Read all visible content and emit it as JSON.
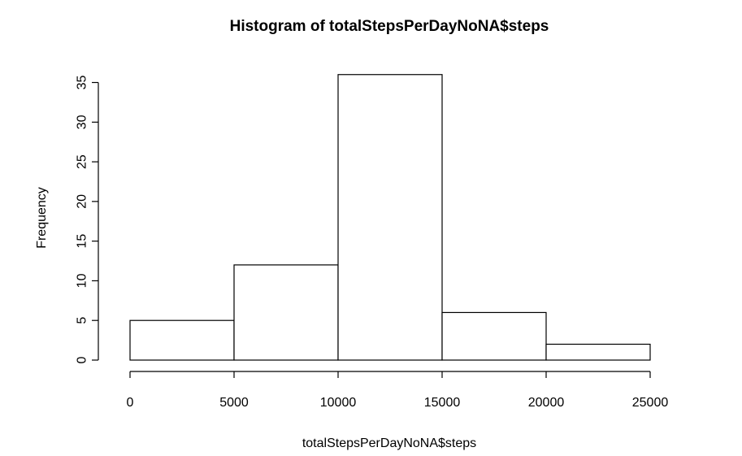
{
  "chart_data": {
    "type": "bar",
    "title": "Histogram of totalStepsPerDayNoNA$steps",
    "xlabel": "totalStepsPerDayNoNA$steps",
    "ylabel": "Frequency",
    "bins": [
      {
        "from": 0,
        "to": 5000,
        "count": 5
      },
      {
        "from": 5000,
        "to": 10000,
        "count": 12
      },
      {
        "from": 10000,
        "to": 15000,
        "count": 36
      },
      {
        "from": 15000,
        "to": 20000,
        "count": 6
      },
      {
        "from": 20000,
        "to": 25000,
        "count": 2
      }
    ],
    "xlim": [
      0,
      25000
    ],
    "ylim": [
      0,
      35
    ],
    "xticks": [
      0,
      5000,
      10000,
      15000,
      20000,
      25000
    ],
    "yticks": [
      0,
      5,
      10,
      15,
      20,
      25,
      30,
      35
    ],
    "grid": false,
    "colors": {
      "bar_fill": "#ffffff",
      "bar_stroke": "#000000"
    }
  }
}
